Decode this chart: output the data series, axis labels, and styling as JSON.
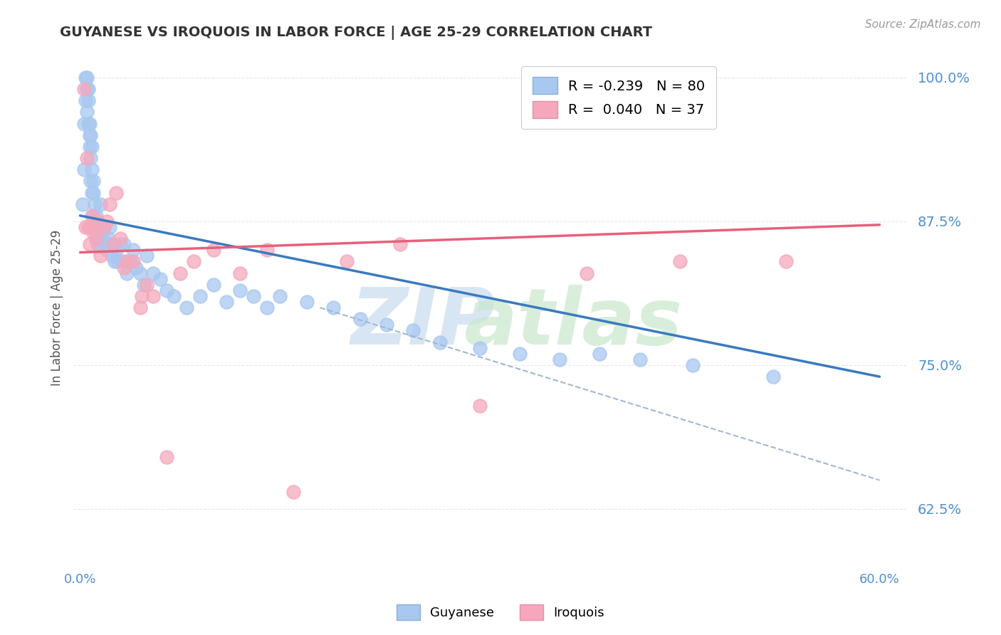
{
  "title": "GUYANESE VS IROQUOIS IN LABOR FORCE | AGE 25-29 CORRELATION CHART",
  "source": "Source: ZipAtlas.com",
  "ylabel": "In Labor Force | Age 25-29",
  "xlim": [
    -0.005,
    0.62
  ],
  "ylim": [
    0.575,
    1.025
  ],
  "yticks": [
    0.625,
    0.75,
    0.875,
    1.0
  ],
  "ytick_labels": [
    "62.5%",
    "75.0%",
    "87.5%",
    "100.0%"
  ],
  "xticks": [
    0.0,
    0.1,
    0.2,
    0.3,
    0.4,
    0.5,
    0.6
  ],
  "xtick_labels": [
    "0.0%",
    "",
    "",
    "",
    "",
    "",
    "60.0%"
  ],
  "guyanese_color": "#a8c8f0",
  "iroquois_color": "#f5a8bc",
  "background_color": "#ffffff",
  "grid_color": "#e8e8e8",
  "blue_line_color": "#3a7abf",
  "pink_line_color": "#e8607a",
  "dashed_line_color": "#a0b8d0",
  "tick_label_color": "#5090d0",
  "guyanese_x": [
    0.002,
    0.003,
    0.003,
    0.004,
    0.004,
    0.005,
    0.005,
    0.005,
    0.006,
    0.006,
    0.006,
    0.007,
    0.007,
    0.007,
    0.008,
    0.008,
    0.008,
    0.009,
    0.009,
    0.009,
    0.01,
    0.01,
    0.01,
    0.011,
    0.011,
    0.012,
    0.012,
    0.013,
    0.013,
    0.014,
    0.015,
    0.015,
    0.016,
    0.017,
    0.018,
    0.019,
    0.02,
    0.021,
    0.022,
    0.023,
    0.024,
    0.025,
    0.026,
    0.027,
    0.028,
    0.03,
    0.032,
    0.033,
    0.035,
    0.038,
    0.04,
    0.042,
    0.045,
    0.048,
    0.05,
    0.055,
    0.06,
    0.065,
    0.07,
    0.08,
    0.09,
    0.1,
    0.11,
    0.12,
    0.13,
    0.14,
    0.15,
    0.17,
    0.19,
    0.21,
    0.23,
    0.25,
    0.27,
    0.3,
    0.33,
    0.36,
    0.39,
    0.42,
    0.46,
    0.52
  ],
  "guyanese_y": [
    0.89,
    0.92,
    0.96,
    0.98,
    1.0,
    1.0,
    0.99,
    0.97,
    0.96,
    0.99,
    0.98,
    0.96,
    0.94,
    0.95,
    0.93,
    0.91,
    0.95,
    0.92,
    0.9,
    0.94,
    0.9,
    0.88,
    0.91,
    0.89,
    0.87,
    0.88,
    0.86,
    0.875,
    0.855,
    0.87,
    0.86,
    0.89,
    0.855,
    0.865,
    0.87,
    0.855,
    0.85,
    0.86,
    0.87,
    0.855,
    0.845,
    0.855,
    0.84,
    0.85,
    0.84,
    0.855,
    0.84,
    0.855,
    0.83,
    0.84,
    0.85,
    0.835,
    0.83,
    0.82,
    0.845,
    0.83,
    0.825,
    0.815,
    0.81,
    0.8,
    0.81,
    0.82,
    0.805,
    0.815,
    0.81,
    0.8,
    0.81,
    0.805,
    0.8,
    0.79,
    0.785,
    0.78,
    0.77,
    0.765,
    0.76,
    0.755,
    0.76,
    0.755,
    0.75,
    0.74
  ],
  "iroquois_x": [
    0.003,
    0.004,
    0.005,
    0.006,
    0.007,
    0.008,
    0.009,
    0.01,
    0.012,
    0.013,
    0.015,
    0.018,
    0.02,
    0.022,
    0.025,
    0.027,
    0.03,
    0.033,
    0.035,
    0.04,
    0.045,
    0.046,
    0.05,
    0.055,
    0.065,
    0.075,
    0.085,
    0.1,
    0.12,
    0.14,
    0.16,
    0.2,
    0.24,
    0.3,
    0.38,
    0.45,
    0.53
  ],
  "iroquois_y": [
    0.99,
    0.87,
    0.93,
    0.87,
    0.855,
    0.87,
    0.88,
    0.865,
    0.86,
    0.875,
    0.845,
    0.87,
    0.875,
    0.89,
    0.855,
    0.9,
    0.86,
    0.835,
    0.84,
    0.84,
    0.8,
    0.81,
    0.82,
    0.81,
    0.67,
    0.83,
    0.84,
    0.85,
    0.83,
    0.85,
    0.64,
    0.84,
    0.855,
    0.715,
    0.83,
    0.84,
    0.84
  ],
  "blue_line_x": [
    0.0,
    0.6
  ],
  "blue_line_y": [
    0.88,
    0.74
  ],
  "pink_line_x": [
    0.0,
    0.6
  ],
  "pink_line_y": [
    0.848,
    0.872
  ],
  "dashed_line_x": [
    0.18,
    0.6
  ],
  "dashed_line_y": [
    0.8,
    0.65
  ]
}
